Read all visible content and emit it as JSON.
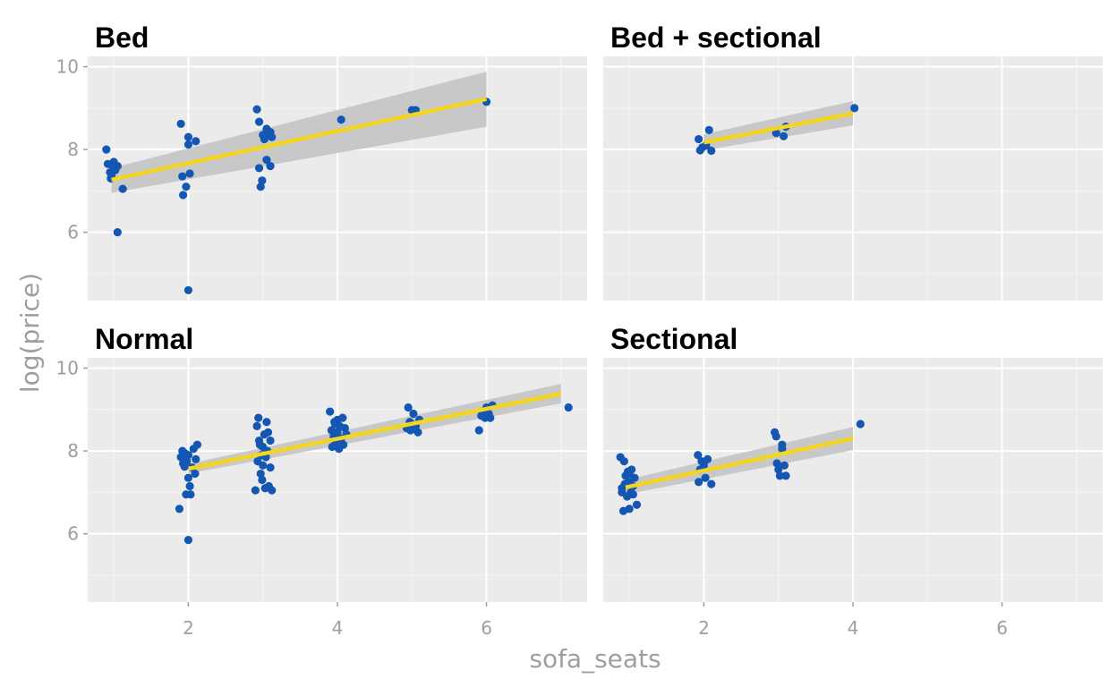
{
  "chart_data": {
    "type": "scatter",
    "xlabel": "sofa_seats",
    "ylabel": "log(price)",
    "xlim": [
      0.65,
      7.35
    ],
    "ylim": [
      4.35,
      10.25
    ],
    "x_ticks": [
      2,
      4,
      6
    ],
    "y_ticks": [
      6,
      8,
      10
    ],
    "x_tick_labels": [
      "2",
      "4",
      "6"
    ],
    "y_tick_labels": [
      "6",
      "8",
      "10"
    ],
    "grid": true,
    "legend": "none",
    "colors": {
      "panel_background": "#ebebeb",
      "grid": "#ffffff",
      "points": "#1457b3",
      "fit_line": "#f5d61f",
      "confidence_band": "#c4c4c4"
    },
    "facets": [
      {
        "title": "Bed",
        "points": [
          [
            0.9,
            8.0
          ],
          [
            0.92,
            7.65
          ],
          [
            0.95,
            7.45
          ],
          [
            0.97,
            7.35
          ],
          [
            0.99,
            7.55
          ],
          [
            1.0,
            7.7
          ],
          [
            1.02,
            7.5
          ],
          [
            1.05,
            7.6
          ],
          [
            0.96,
            7.3
          ],
          [
            1.05,
            6.0
          ],
          [
            1.12,
            7.05
          ],
          [
            1.9,
            8.62
          ],
          [
            1.92,
            7.35
          ],
          [
            1.93,
            6.9
          ],
          [
            1.97,
            7.1
          ],
          [
            2.0,
            8.3
          ],
          [
            2.0,
            8.12
          ],
          [
            2.02,
            7.42
          ],
          [
            2.0,
            4.6
          ],
          [
            2.1,
            8.2
          ],
          [
            2.92,
            8.97
          ],
          [
            2.95,
            8.67
          ],
          [
            2.95,
            7.55
          ],
          [
            2.97,
            7.1
          ],
          [
            2.99,
            7.25
          ],
          [
            3.0,
            8.35
          ],
          [
            3.02,
            8.25
          ],
          [
            3.05,
            7.75
          ],
          [
            3.05,
            8.5
          ],
          [
            3.1,
            8.42
          ],
          [
            3.1,
            7.6
          ],
          [
            3.12,
            8.3
          ],
          [
            3.05,
            8.4
          ],
          [
            4.05,
            8.72
          ],
          [
            5.0,
            8.95
          ],
          [
            5.05,
            8.95
          ],
          [
            6.0,
            9.15
          ]
        ],
        "fit": {
          "x": [
            0.97,
            6.0
          ],
          "y": [
            7.27,
            9.22
          ]
        },
        "band": {
          "x": [
            0.97,
            6.0
          ],
          "lower": [
            6.95,
            8.55
          ],
          "upper": [
            7.55,
            9.88
          ]
        }
      },
      {
        "title": "Bed + sectional",
        "points": [
          [
            1.93,
            8.25
          ],
          [
            1.95,
            7.98
          ],
          [
            1.98,
            8.05
          ],
          [
            2.03,
            8.1
          ],
          [
            2.07,
            8.47
          ],
          [
            2.1,
            7.97
          ],
          [
            2.97,
            8.4
          ],
          [
            3.07,
            8.32
          ],
          [
            3.1,
            8.55
          ],
          [
            4.02,
            9.0
          ]
        ],
        "fit": {
          "x": [
            2.0,
            4.0
          ],
          "y": [
            8.17,
            8.87
          ]
        },
        "band": {
          "x": [
            2.0,
            4.0
          ],
          "lower": [
            7.98,
            8.58
          ],
          "upper": [
            8.37,
            9.17
          ]
        }
      },
      {
        "title": "Normal",
        "points": [
          [
            1.88,
            6.6
          ],
          [
            1.9,
            7.85
          ],
          [
            1.92,
            8.0
          ],
          [
            1.93,
            7.7
          ],
          [
            1.95,
            7.95
          ],
          [
            1.97,
            6.95
          ],
          [
            1.98,
            7.75
          ],
          [
            2.0,
            7.9
          ],
          [
            2.0,
            5.85
          ],
          [
            2.02,
            7.15
          ],
          [
            2.03,
            6.95
          ],
          [
            2.05,
            7.6
          ],
          [
            2.07,
            8.05
          ],
          [
            2.09,
            7.45
          ],
          [
            2.1,
            7.8
          ],
          [
            2.12,
            8.15
          ],
          [
            1.95,
            7.62
          ],
          [
            2.0,
            7.35
          ],
          [
            2.9,
            7.05
          ],
          [
            2.92,
            8.6
          ],
          [
            2.94,
            8.8
          ],
          [
            2.95,
            8.25
          ],
          [
            2.97,
            7.45
          ],
          [
            2.98,
            7.9
          ],
          [
            3.0,
            8.1
          ],
          [
            3.0,
            7.65
          ],
          [
            3.02,
            8.4
          ],
          [
            3.03,
            7.1
          ],
          [
            3.05,
            8.7
          ],
          [
            3.06,
            8.0
          ],
          [
            3.08,
            7.15
          ],
          [
            3.1,
            8.25
          ],
          [
            3.12,
            7.05
          ],
          [
            2.93,
            7.75
          ],
          [
            2.96,
            8.15
          ],
          [
            3.04,
            7.85
          ],
          [
            3.07,
            8.45
          ],
          [
            3.1,
            7.6
          ],
          [
            2.99,
            7.3
          ],
          [
            3.9,
            8.95
          ],
          [
            3.92,
            8.5
          ],
          [
            3.93,
            8.1
          ],
          [
            3.95,
            8.35
          ],
          [
            3.97,
            8.65
          ],
          [
            3.98,
            8.2
          ],
          [
            4.0,
            8.75
          ],
          [
            4.0,
            8.45
          ],
          [
            4.02,
            8.05
          ],
          [
            4.03,
            8.6
          ],
          [
            4.05,
            8.3
          ],
          [
            4.07,
            8.8
          ],
          [
            4.08,
            8.15
          ],
          [
            4.1,
            8.55
          ],
          [
            4.12,
            8.4
          ],
          [
            3.96,
            8.7
          ],
          [
            4.04,
            8.25
          ],
          [
            4.95,
            9.05
          ],
          [
            4.97,
            8.7
          ],
          [
            4.98,
            8.5
          ],
          [
            5.0,
            8.65
          ],
          [
            5.02,
            8.9
          ],
          [
            5.05,
            8.6
          ],
          [
            5.08,
            8.45
          ],
          [
            5.1,
            8.75
          ],
          [
            4.93,
            8.55
          ],
          [
            5.9,
            8.5
          ],
          [
            5.93,
            8.85
          ],
          [
            5.95,
            8.95
          ],
          [
            5.98,
            8.8
          ],
          [
            6.0,
            9.05
          ],
          [
            6.03,
            8.9
          ],
          [
            6.05,
            8.8
          ],
          [
            6.08,
            9.1
          ],
          [
            7.1,
            9.05
          ]
        ],
        "fit": {
          "x": [
            2.0,
            7.0
          ],
          "y": [
            7.57,
            9.38
          ]
        },
        "band": {
          "x": [
            2.0,
            7.0
          ],
          "lower": [
            7.45,
            9.15
          ],
          "upper": [
            7.69,
            9.62
          ]
        }
      },
      {
        "title": "Sectional",
        "points": [
          [
            0.88,
            7.85
          ],
          [
            0.9,
            7.1
          ],
          [
            0.92,
            6.55
          ],
          [
            0.93,
            7.75
          ],
          [
            0.95,
            7.4
          ],
          [
            0.97,
            6.9
          ],
          [
            0.98,
            7.5
          ],
          [
            1.0,
            7.25
          ],
          [
            1.0,
            6.6
          ],
          [
            1.02,
            7.0
          ],
          [
            1.03,
            7.55
          ],
          [
            1.05,
            6.95
          ],
          [
            1.07,
            7.35
          ],
          [
            1.1,
            6.7
          ],
          [
            0.9,
            7.0
          ],
          [
            0.94,
            7.2
          ],
          [
            1.0,
            7.45
          ],
          [
            1.05,
            7.15
          ],
          [
            1.92,
            7.9
          ],
          [
            1.93,
            7.25
          ],
          [
            1.95,
            7.55
          ],
          [
            1.97,
            7.75
          ],
          [
            2.0,
            7.65
          ],
          [
            2.02,
            7.35
          ],
          [
            2.05,
            7.8
          ],
          [
            2.1,
            7.2
          ],
          [
            2.95,
            8.45
          ],
          [
            2.97,
            8.35
          ],
          [
            2.98,
            7.7
          ],
          [
            3.0,
            7.55
          ],
          [
            3.02,
            7.4
          ],
          [
            3.05,
            8.15
          ],
          [
            3.05,
            8.05
          ],
          [
            3.08,
            7.65
          ],
          [
            3.1,
            7.4
          ],
          [
            4.1,
            8.65
          ]
        ],
        "fit": {
          "x": [
            0.95,
            4.0
          ],
          "y": [
            7.12,
            8.3
          ]
        },
        "band": {
          "x": [
            0.95,
            4.0
          ],
          "lower": [
            6.95,
            8.02
          ],
          "upper": [
            7.3,
            8.58
          ]
        }
      }
    ]
  }
}
